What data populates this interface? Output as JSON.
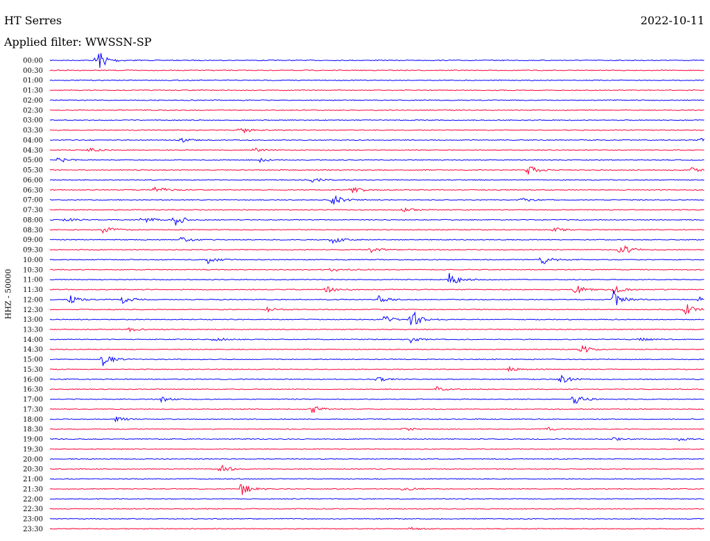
{
  "header": {
    "station": "HT Serres",
    "date": "2022-10-11",
    "filter": "Applied filter: WWSSN-SP",
    "channel": "HHZ - 50000"
  },
  "colors": {
    "trace_a": "#0000ff",
    "trace_b": "#ff0033",
    "background": "#ffffff",
    "text": "#000000"
  },
  "chart_data": {
    "type": "line",
    "title": "HT Serres",
    "subtitle": "Applied filter: WWSSN-SP",
    "ylabel": "HHZ - 50000",
    "xlabel": "",
    "grid": false,
    "legend": "none",
    "rows": [
      {
        "label": "00:00",
        "events": [
          {
            "x": 0.07,
            "amp": 1.8
          }
        ]
      },
      {
        "label": "00:30",
        "events": []
      },
      {
        "label": "01:00",
        "events": []
      },
      {
        "label": "01:30",
        "events": []
      },
      {
        "label": "02:00",
        "events": []
      },
      {
        "label": "02:30",
        "events": []
      },
      {
        "label": "03:00",
        "events": []
      },
      {
        "label": "03:30",
        "events": [
          {
            "x": 0.29,
            "amp": 0.5
          }
        ]
      },
      {
        "label": "04:00",
        "events": [
          {
            "x": 0.2,
            "amp": 0.3
          },
          {
            "x": 0.99,
            "amp": 0.3
          }
        ]
      },
      {
        "label": "04:30",
        "events": [
          {
            "x": 0.06,
            "amp": 0.3
          },
          {
            "x": 0.31,
            "amp": 0.3
          }
        ]
      },
      {
        "label": "05:00",
        "events": [
          {
            "x": 0.01,
            "amp": 0.4
          },
          {
            "x": 0.32,
            "amp": 0.3
          }
        ]
      },
      {
        "label": "05:30",
        "events": [
          {
            "x": 0.73,
            "amp": 0.7
          },
          {
            "x": 0.98,
            "amp": 0.3
          }
        ]
      },
      {
        "label": "06:00",
        "events": [
          {
            "x": 0.4,
            "amp": 0.3
          }
        ]
      },
      {
        "label": "06:30",
        "events": [
          {
            "x": 0.16,
            "amp": 0.6
          },
          {
            "x": 0.46,
            "amp": 0.6
          }
        ]
      },
      {
        "label": "07:00",
        "events": [
          {
            "x": 0.43,
            "amp": 0.8
          },
          {
            "x": 0.72,
            "amp": 0.3
          }
        ]
      },
      {
        "label": "07:30",
        "events": [
          {
            "x": 0.54,
            "amp": 0.3
          }
        ]
      },
      {
        "label": "08:00",
        "events": [
          {
            "x": 0.02,
            "amp": 0.4
          },
          {
            "x": 0.14,
            "amp": 0.5
          },
          {
            "x": 0.19,
            "amp": 0.8
          }
        ]
      },
      {
        "label": "08:30",
        "events": [
          {
            "x": 0.08,
            "amp": 0.6
          },
          {
            "x": 0.77,
            "amp": 0.3
          }
        ]
      },
      {
        "label": "09:00",
        "events": [
          {
            "x": 0.2,
            "amp": 0.3
          },
          {
            "x": 0.43,
            "amp": 0.5
          }
        ]
      },
      {
        "label": "09:30",
        "events": [
          {
            "x": 0.49,
            "amp": 0.4
          },
          {
            "x": 0.87,
            "amp": 0.9
          }
        ]
      },
      {
        "label": "10:00",
        "events": [
          {
            "x": 0.24,
            "amp": 0.5
          },
          {
            "x": 0.75,
            "amp": 0.7
          }
        ]
      },
      {
        "label": "10:30",
        "events": [
          {
            "x": 0.43,
            "amp": 0.3
          }
        ]
      },
      {
        "label": "11:00",
        "events": [
          {
            "x": 0.61,
            "amp": 0.9
          }
        ]
      },
      {
        "label": "11:30",
        "events": [
          {
            "x": 0.42,
            "amp": 0.7
          },
          {
            "x": 0.8,
            "amp": 0.7
          },
          {
            "x": 0.86,
            "amp": 0.5
          }
        ]
      },
      {
        "label": "12:00",
        "events": [
          {
            "x": 0.03,
            "amp": 0.6
          },
          {
            "x": 0.11,
            "amp": 0.6
          },
          {
            "x": 0.5,
            "amp": 0.5
          },
          {
            "x": 0.86,
            "amp": 1.3
          },
          {
            "x": 0.99,
            "amp": 0.5
          }
        ]
      },
      {
        "label": "12:30",
        "events": [
          {
            "x": 0.33,
            "amp": 0.3
          },
          {
            "x": 0.97,
            "amp": 0.8
          }
        ]
      },
      {
        "label": "13:00",
        "events": [
          {
            "x": 0.51,
            "amp": 0.5
          },
          {
            "x": 0.55,
            "amp": 1.5
          }
        ]
      },
      {
        "label": "13:30",
        "events": [
          {
            "x": 0.12,
            "amp": 0.3
          }
        ]
      },
      {
        "label": "14:00",
        "events": [
          {
            "x": 0.25,
            "amp": 0.3
          },
          {
            "x": 0.55,
            "amp": 0.4
          },
          {
            "x": 0.9,
            "amp": 0.3
          }
        ]
      },
      {
        "label": "14:30",
        "events": [
          {
            "x": 0.81,
            "amp": 0.6
          }
        ]
      },
      {
        "label": "15:00",
        "events": [
          {
            "x": 0.08,
            "amp": 0.9
          }
        ]
      },
      {
        "label": "15:30",
        "events": [
          {
            "x": 0.7,
            "amp": 0.3
          }
        ]
      },
      {
        "label": "16:00",
        "events": [
          {
            "x": 0.5,
            "amp": 0.3
          },
          {
            "x": 0.78,
            "amp": 0.6
          }
        ]
      },
      {
        "label": "16:30",
        "events": [
          {
            "x": 0.59,
            "amp": 0.3
          }
        ]
      },
      {
        "label": "17:00",
        "events": [
          {
            "x": 0.17,
            "amp": 0.3
          },
          {
            "x": 0.8,
            "amp": 0.8
          }
        ]
      },
      {
        "label": "17:30",
        "events": [
          {
            "x": 0.4,
            "amp": 0.5
          }
        ]
      },
      {
        "label": "18:00",
        "events": [
          {
            "x": 0.1,
            "amp": 0.3
          }
        ]
      },
      {
        "label": "18:30",
        "events": [
          {
            "x": 0.54,
            "amp": 0.4
          },
          {
            "x": 0.76,
            "amp": 0.2
          }
        ]
      },
      {
        "label": "19:00",
        "events": [
          {
            "x": 0.86,
            "amp": 0.2
          },
          {
            "x": 0.96,
            "amp": 0.2
          }
        ]
      },
      {
        "label": "19:30",
        "events": []
      },
      {
        "label": "20:00",
        "events": []
      },
      {
        "label": "20:30",
        "events": [
          {
            "x": 0.26,
            "amp": 0.6
          }
        ]
      },
      {
        "label": "21:00",
        "events": []
      },
      {
        "label": "21:30",
        "events": [
          {
            "x": 0.29,
            "amp": 1.0
          },
          {
            "x": 0.54,
            "amp": 0.3
          }
        ]
      },
      {
        "label": "22:00",
        "events": []
      },
      {
        "label": "22:30",
        "events": []
      },
      {
        "label": "23:00",
        "events": []
      },
      {
        "label": "23:30",
        "events": [
          {
            "x": 0.55,
            "amp": 0.2
          }
        ]
      }
    ]
  }
}
